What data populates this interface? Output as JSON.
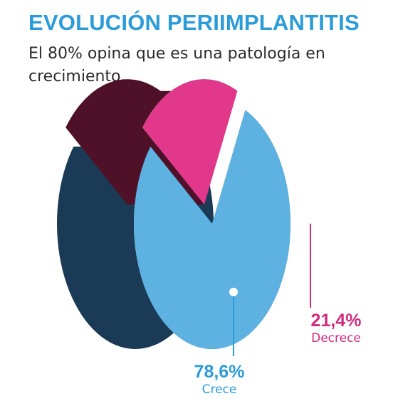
{
  "title": "EVOLUCIÓN PERIIMPLANTITIS",
  "subtitle": "El 80% opina que es una patología en crecimiento.",
  "colors": {
    "title": "#2b9bd9",
    "subtitle": "#2b2b2b",
    "crece_top": "#5db2e2",
    "crece_side": "#1a3a56",
    "decrece_top": "#e1388b",
    "decrece_side": "#4e1128",
    "crece_label": "#2b9bd9",
    "decrece_label": "#d12a7f"
  },
  "chart_data": {
    "type": "pie",
    "style": "3d-exploded",
    "title": "EVOLUCIÓN PERIIMPLANTITIS",
    "categories": [
      "Crece",
      "Decrece"
    ],
    "values": [
      78.6,
      21.4
    ],
    "value_labels": [
      "78,6%",
      "21,4%"
    ],
    "legend": "none",
    "grid": false
  }
}
